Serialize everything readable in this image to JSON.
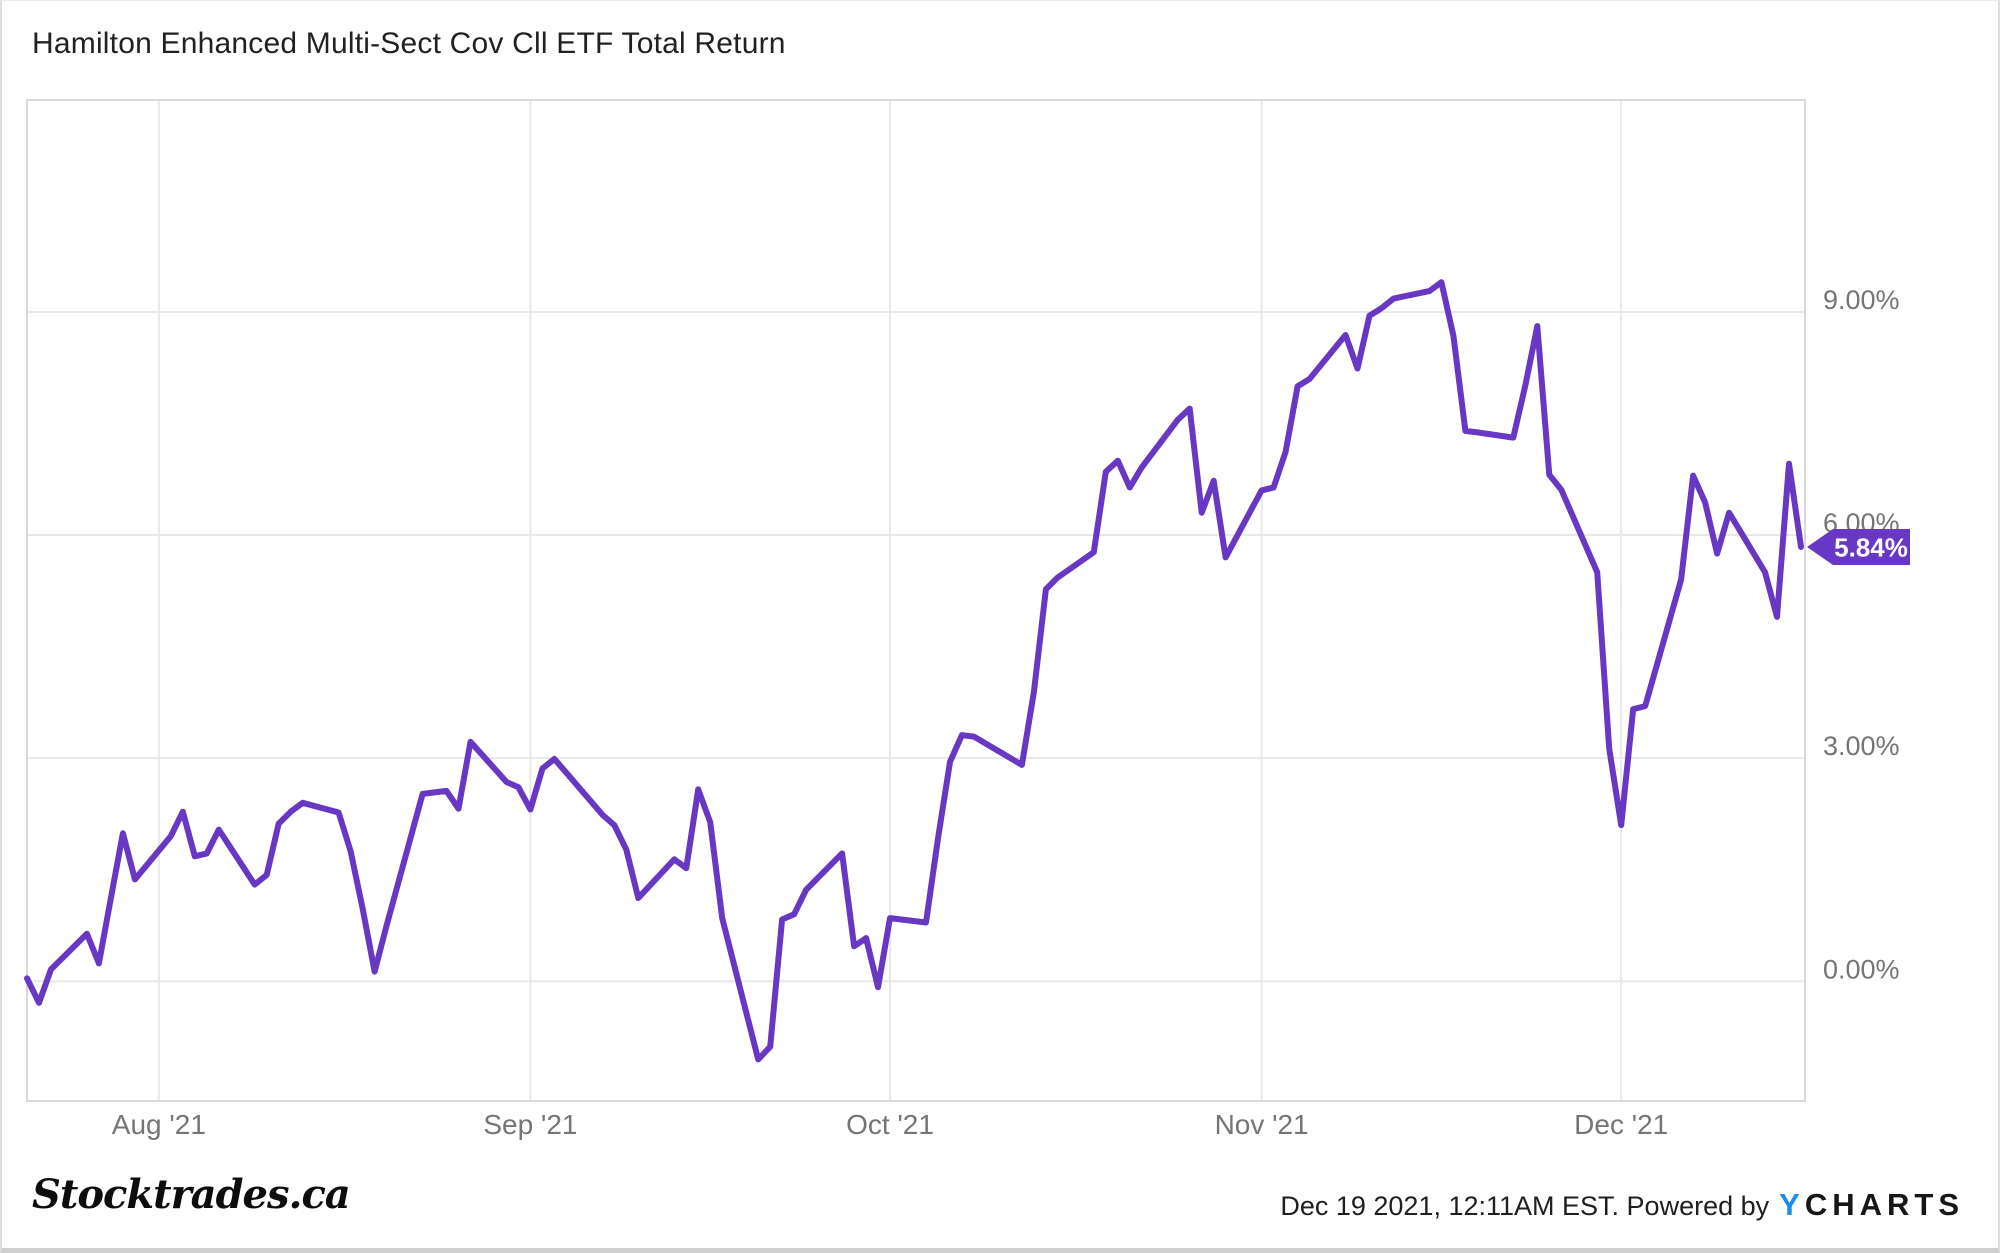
{
  "title": "Hamilton Enhanced Multi-Sect Cov Cll ETF Total Return",
  "watermark": "Stocktrades.ca",
  "footer": {
    "timestamp": "Dec 19 2021, 12:11AM EST.",
    "powered_by": "Powered by",
    "brand_y": "Y",
    "brand_rest": "CHARTS"
  },
  "colors": {
    "line": "#6838c5",
    "badge": "#6838c5",
    "badge_text": "#ffffff",
    "grid": "#e8e8e8",
    "plot_border": "#d9d9d9",
    "axis_text": "#757575",
    "title_text": "#212121",
    "ycharts_blue": "#1e8ceb"
  },
  "chart_data": {
    "type": "line",
    "title": "Hamilton Enhanced Multi-Sect Cov Cll ETF Total Return",
    "series_name": "Total Return (%)",
    "xlabel": "",
    "ylabel": "",
    "legend": "none",
    "grid": "on",
    "xlim": [
      "2021-07-21",
      "2021-12-16"
    ],
    "ylim": [
      -1.61,
      11.85
    ],
    "y_ticks": [
      {
        "value": 0,
        "label": "0.00%"
      },
      {
        "value": 3,
        "label": "3.00%"
      },
      {
        "value": 6,
        "label": "6.00%"
      },
      {
        "value": 9,
        "label": "9.00%"
      }
    ],
    "x_ticks": [
      {
        "date": "2021-08-01",
        "label": "Aug '21"
      },
      {
        "date": "2021-09-01",
        "label": "Sep '21"
      },
      {
        "date": "2021-10-01",
        "label": "Oct '21"
      },
      {
        "date": "2021-11-01",
        "label": "Nov '21"
      },
      {
        "date": "2021-12-01",
        "label": "Dec '21"
      }
    ],
    "last_value": 5.84,
    "last_value_label": "5.84%",
    "points": [
      [
        "2021-07-21",
        0.04
      ],
      [
        "2021-07-22",
        -0.29
      ],
      [
        "2021-07-23",
        0.16
      ],
      [
        "2021-07-26",
        0.64
      ],
      [
        "2021-07-27",
        0.24
      ],
      [
        "2021-07-28",
        1.12
      ],
      [
        "2021-07-29",
        1.99
      ],
      [
        "2021-07-30",
        1.37
      ],
      [
        "2021-08-02",
        1.95
      ],
      [
        "2021-08-03",
        2.28
      ],
      [
        "2021-08-04",
        1.68
      ],
      [
        "2021-08-05",
        1.72
      ],
      [
        "2021-08-06",
        2.04
      ],
      [
        "2021-08-09",
        1.3
      ],
      [
        "2021-08-10",
        1.43
      ],
      [
        "2021-08-11",
        2.12
      ],
      [
        "2021-08-12",
        2.28
      ],
      [
        "2021-08-13",
        2.4
      ],
      [
        "2021-08-16",
        2.27
      ],
      [
        "2021-08-17",
        1.75
      ],
      [
        "2021-08-18",
        0.98
      ],
      [
        "2021-08-19",
        0.13
      ],
      [
        "2021-08-20",
        0.75
      ],
      [
        "2021-08-23",
        2.52
      ],
      [
        "2021-08-24",
        2.54
      ],
      [
        "2021-08-25",
        2.56
      ],
      [
        "2021-08-26",
        2.32
      ],
      [
        "2021-08-27",
        3.22
      ],
      [
        "2021-08-30",
        2.68
      ],
      [
        "2021-08-31",
        2.61
      ],
      [
        "2021-09-01",
        2.31
      ],
      [
        "2021-09-02",
        2.86
      ],
      [
        "2021-09-03",
        2.99
      ],
      [
        "2021-09-07",
        2.24
      ],
      [
        "2021-09-08",
        2.1
      ],
      [
        "2021-09-09",
        1.77
      ],
      [
        "2021-09-10",
        1.12
      ],
      [
        "2021-09-13",
        1.64
      ],
      [
        "2021-09-14",
        1.52
      ],
      [
        "2021-09-15",
        2.58
      ],
      [
        "2021-09-16",
        2.14
      ],
      [
        "2021-09-17",
        0.85
      ],
      [
        "2021-09-20",
        -1.05
      ],
      [
        "2021-09-21",
        -0.88
      ],
      [
        "2021-09-22",
        0.83
      ],
      [
        "2021-09-23",
        0.9
      ],
      [
        "2021-09-24",
        1.23
      ],
      [
        "2021-09-27",
        1.72
      ],
      [
        "2021-09-28",
        0.47
      ],
      [
        "2021-09-29",
        0.58
      ],
      [
        "2021-09-30",
        -0.08
      ],
      [
        "2021-10-01",
        0.85
      ],
      [
        "2021-10-04",
        0.79
      ],
      [
        "2021-10-05",
        1.92
      ],
      [
        "2021-10-06",
        2.95
      ],
      [
        "2021-10-07",
        3.31
      ],
      [
        "2021-10-08",
        3.29
      ],
      [
        "2021-10-12",
        2.91
      ],
      [
        "2021-10-13",
        3.89
      ],
      [
        "2021-10-14",
        5.27
      ],
      [
        "2021-10-15",
        5.43
      ],
      [
        "2021-10-18",
        5.77
      ],
      [
        "2021-10-19",
        6.85
      ],
      [
        "2021-10-20",
        7.0
      ],
      [
        "2021-10-21",
        6.64
      ],
      [
        "2021-10-22",
        6.91
      ],
      [
        "2021-10-25",
        7.55
      ],
      [
        "2021-10-26",
        7.7
      ],
      [
        "2021-10-27",
        6.3
      ],
      [
        "2021-10-28",
        6.73
      ],
      [
        "2021-10-29",
        5.7
      ],
      [
        "2021-11-01",
        6.6
      ],
      [
        "2021-11-02",
        6.64
      ],
      [
        "2021-11-03",
        7.12
      ],
      [
        "2021-11-04",
        8.0
      ],
      [
        "2021-11-05",
        8.1
      ],
      [
        "2021-11-08",
        8.69
      ],
      [
        "2021-11-09",
        8.24
      ],
      [
        "2021-11-10",
        8.95
      ],
      [
        "2021-11-11",
        9.05
      ],
      [
        "2021-11-12",
        9.18
      ],
      [
        "2021-11-15",
        9.28
      ],
      [
        "2021-11-16",
        9.4
      ],
      [
        "2021-11-17",
        8.68
      ],
      [
        "2021-11-18",
        7.4
      ],
      [
        "2021-11-19",
        7.38
      ],
      [
        "2021-11-22",
        7.31
      ],
      [
        "2021-11-23",
        8.01
      ],
      [
        "2021-11-24",
        8.81
      ],
      [
        "2021-11-25",
        6.81
      ],
      [
        "2021-11-26",
        6.61
      ],
      [
        "2021-11-29",
        5.5
      ],
      [
        "2021-11-30",
        3.13
      ],
      [
        "2021-12-01",
        2.1
      ],
      [
        "2021-12-02",
        3.66
      ],
      [
        "2021-12-03",
        3.7
      ],
      [
        "2021-12-06",
        5.4
      ],
      [
        "2021-12-07",
        6.8
      ],
      [
        "2021-12-08",
        6.44
      ],
      [
        "2021-12-09",
        5.75
      ],
      [
        "2021-12-10",
        6.3
      ],
      [
        "2021-12-13",
        5.5
      ],
      [
        "2021-12-14",
        4.9
      ],
      [
        "2021-12-15",
        6.96
      ],
      [
        "2021-12-16",
        5.84
      ]
    ]
  }
}
